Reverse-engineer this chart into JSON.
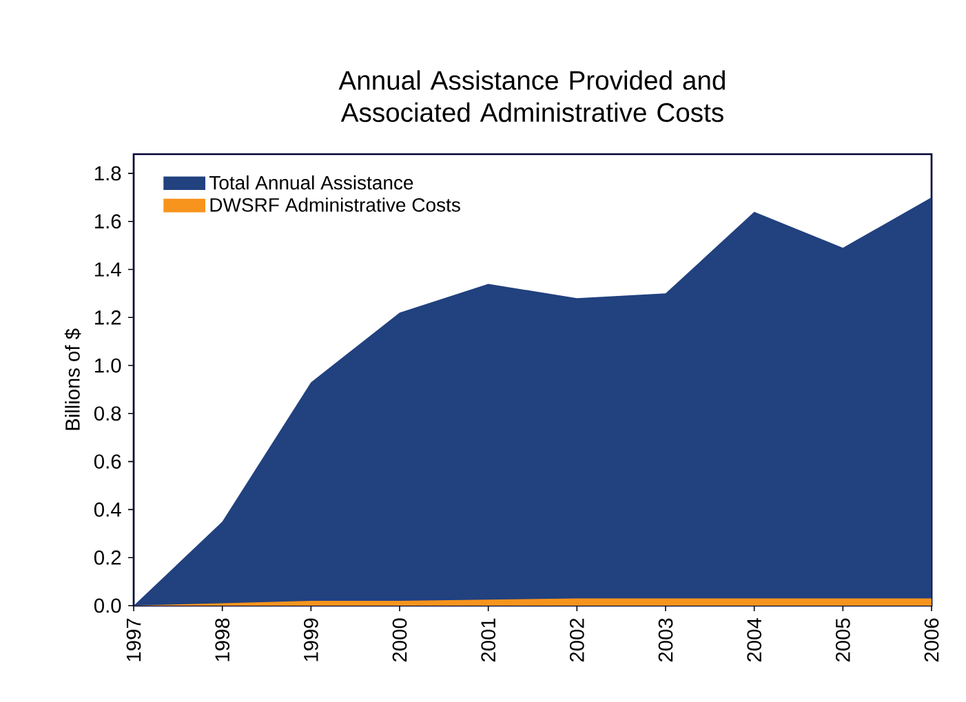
{
  "chart_data": {
    "type": "area",
    "title": "Annual Assistance Provided and Associated Administrative Costs",
    "ylabel": "Billions of $",
    "x": [
      1997,
      1998,
      1999,
      2000,
      2001,
      2002,
      2003,
      2004,
      2005,
      2006
    ],
    "series": [
      {
        "name": "Total Annual Assistance",
        "color": "#21417f",
        "values": [
          0,
          0.35,
          0.93,
          1.22,
          1.34,
          1.28,
          1.3,
          1.64,
          1.49,
          1.7
        ]
      },
      {
        "name": "DWSRF Administrative Costs",
        "color": "#f7941d",
        "values": [
          0,
          0.01,
          0.02,
          0.02,
          0.025,
          0.03,
          0.03,
          0.03,
          0.03,
          0.03
        ]
      }
    ],
    "xlim": [
      1997,
      2006
    ],
    "ylim": [
      0,
      1.88
    ],
    "xticks": [
      1997,
      1998,
      1999,
      2000,
      2001,
      2002,
      2003,
      2004,
      2005,
      2006
    ],
    "yticks": [
      {
        "value": 0,
        "label": "0.0"
      },
      0.2,
      0.4,
      0.6,
      0.8,
      {
        "value": 1,
        "label": "1.0"
      },
      1.2,
      1.4,
      1.6,
      1.8
    ],
    "legend": "top left",
    "grid": false
  }
}
